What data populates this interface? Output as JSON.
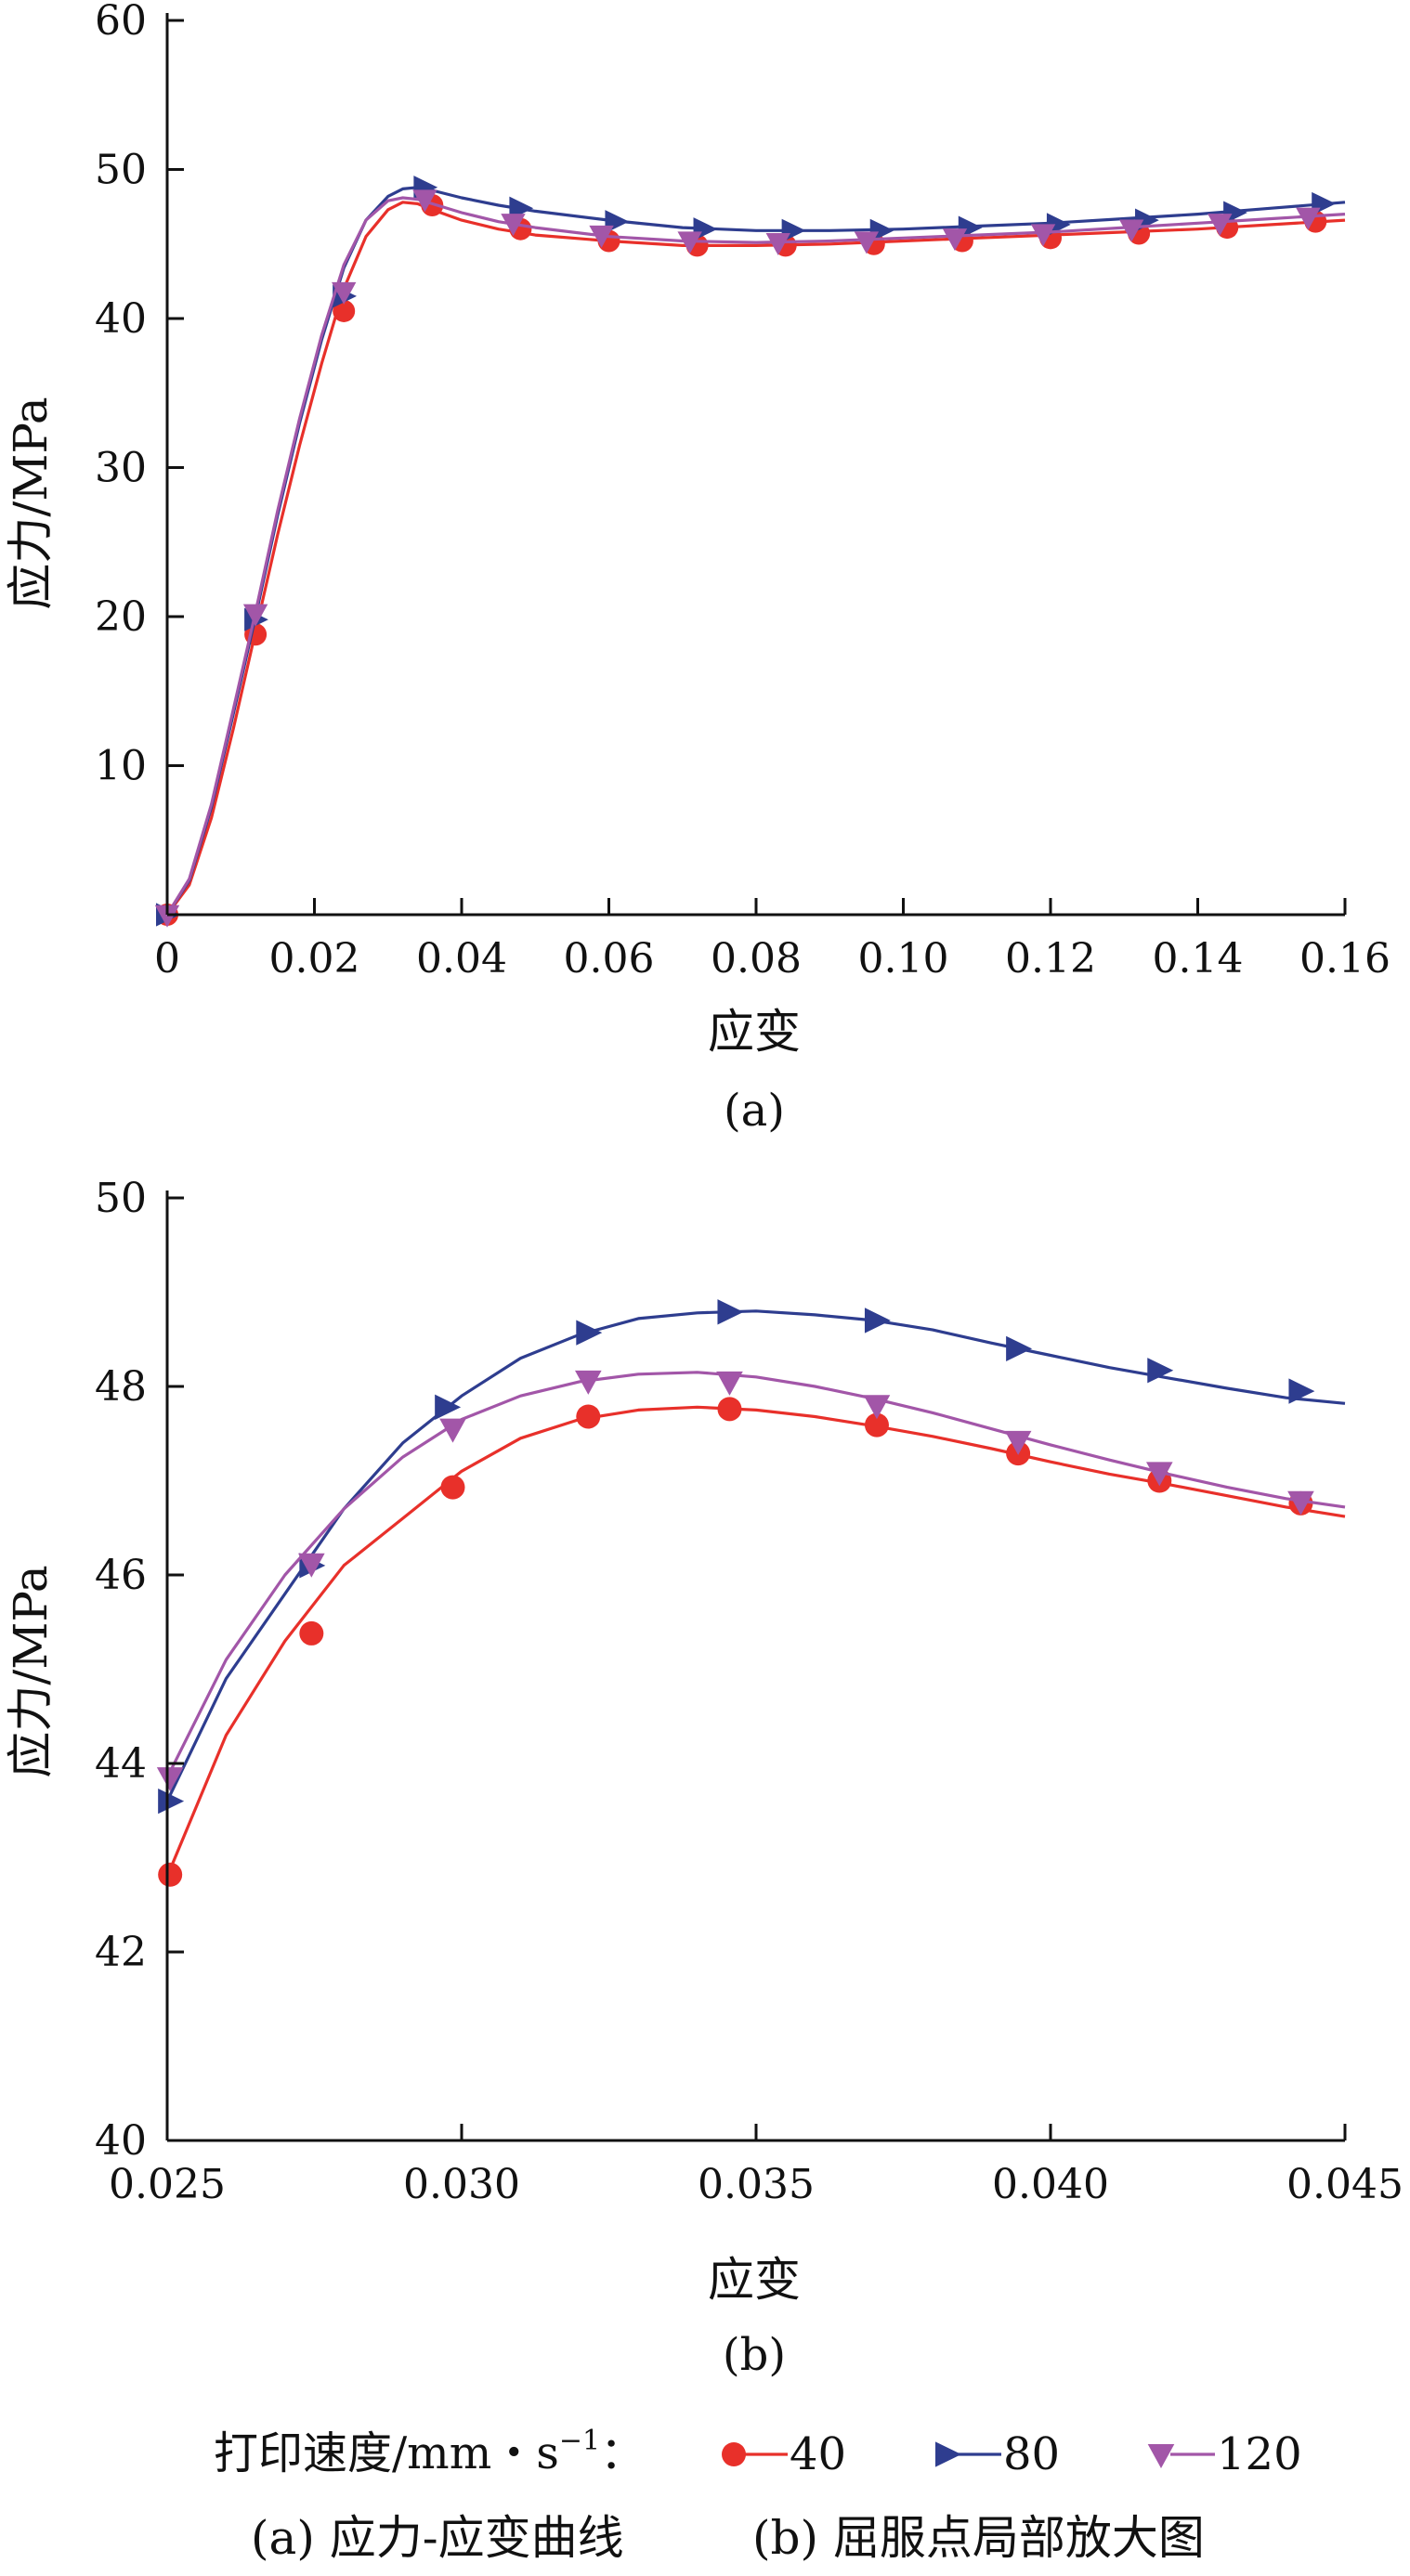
{
  "chart_data": [
    {
      "panel": "(a)",
      "type": "line",
      "xlabel": "应变",
      "ylabel": "应力/MPa",
      "xlim": [
        0,
        0.16
      ],
      "ylim": [
        0,
        60
      ],
      "xticks": [
        "0",
        "0.02",
        "0.04",
        "0.06",
        "0.08",
        "0.10",
        "0.12",
        "0.14",
        "0.16"
      ],
      "yticks": [
        "10",
        "20",
        "30",
        "40",
        "50",
        "60"
      ],
      "grid": false,
      "series": [
        {
          "name": "40",
          "color": "#e8302a",
          "marker": "circle",
          "x": [
            0.0,
            0.003,
            0.006,
            0.009,
            0.012,
            0.015,
            0.018,
            0.021,
            0.024,
            0.027,
            0.03,
            0.032,
            0.034,
            0.036,
            0.04,
            0.045,
            0.05,
            0.06,
            0.07,
            0.08,
            0.09,
            0.1,
            0.11,
            0.12,
            0.13,
            0.14,
            0.15,
            0.16
          ],
          "y": [
            0.0,
            2.0,
            6.5,
            12.5,
            19.0,
            25.5,
            31.5,
            37.0,
            42.0,
            45.5,
            47.3,
            47.8,
            47.7,
            47.3,
            46.6,
            46.0,
            45.6,
            45.2,
            44.9,
            44.9,
            45.0,
            45.2,
            45.4,
            45.6,
            45.8,
            46.0,
            46.3,
            46.6
          ],
          "markers": [
            [
              0.0,
              0.0
            ],
            [
              0.012,
              18.8
            ],
            [
              0.024,
              40.5
            ],
            [
              0.036,
              47.6
            ],
            [
              0.048,
              46.0
            ],
            [
              0.06,
              45.2
            ],
            [
              0.072,
              44.9
            ],
            [
              0.084,
              44.9
            ],
            [
              0.096,
              45.0
            ],
            [
              0.108,
              45.2
            ],
            [
              0.12,
              45.4
            ],
            [
              0.132,
              45.7
            ],
            [
              0.144,
              46.1
            ],
            [
              0.156,
              46.5
            ]
          ]
        },
        {
          "name": "80",
          "color": "#2e3d8f",
          "marker": "triangle-right",
          "x": [
            0.0,
            0.003,
            0.006,
            0.009,
            0.012,
            0.015,
            0.018,
            0.021,
            0.024,
            0.027,
            0.03,
            0.032,
            0.034,
            0.036,
            0.04,
            0.045,
            0.05,
            0.06,
            0.07,
            0.08,
            0.09,
            0.1,
            0.11,
            0.12,
            0.13,
            0.14,
            0.15,
            0.16
          ],
          "y": [
            0.0,
            2.3,
            7.2,
            13.5,
            20.0,
            26.8,
            33.0,
            38.6,
            43.4,
            46.6,
            48.2,
            48.7,
            48.8,
            48.6,
            48.1,
            47.6,
            47.2,
            46.6,
            46.1,
            45.9,
            45.9,
            46.0,
            46.2,
            46.4,
            46.7,
            47.0,
            47.4,
            47.8
          ],
          "markers": [
            [
              0.0,
              0.0
            ],
            [
              0.012,
              19.8
            ],
            [
              0.024,
              41.5
            ],
            [
              0.035,
              48.8
            ],
            [
              0.048,
              47.4
            ],
            [
              0.061,
              46.5
            ],
            [
              0.073,
              46.0
            ],
            [
              0.085,
              45.9
            ],
            [
              0.097,
              45.9
            ],
            [
              0.109,
              46.1
            ],
            [
              0.121,
              46.3
            ],
            [
              0.133,
              46.6
            ],
            [
              0.145,
              47.1
            ],
            [
              0.157,
              47.7
            ]
          ]
        },
        {
          "name": "120",
          "color": "#a256a8",
          "marker": "triangle-down",
          "x": [
            0.0,
            0.003,
            0.006,
            0.009,
            0.012,
            0.015,
            0.018,
            0.021,
            0.024,
            0.027,
            0.03,
            0.032,
            0.034,
            0.036,
            0.04,
            0.045,
            0.05,
            0.06,
            0.07,
            0.08,
            0.09,
            0.1,
            0.11,
            0.12,
            0.13,
            0.14,
            0.15,
            0.16
          ],
          "y": [
            0.0,
            2.4,
            7.4,
            13.8,
            20.3,
            27.1,
            33.3,
            38.9,
            43.6,
            46.6,
            47.9,
            48.1,
            48.0,
            47.7,
            47.1,
            46.5,
            46.1,
            45.5,
            45.2,
            45.1,
            45.2,
            45.4,
            45.6,
            45.8,
            46.1,
            46.4,
            46.7,
            47.0
          ],
          "markers": [
            [
              0.0,
              0.0
            ],
            [
              0.012,
              20.2
            ],
            [
              0.024,
              41.8
            ],
            [
              0.035,
              48.0
            ],
            [
              0.047,
              46.4
            ],
            [
              0.059,
              45.6
            ],
            [
              0.071,
              45.2
            ],
            [
              0.083,
              45.1
            ],
            [
              0.095,
              45.2
            ],
            [
              0.107,
              45.4
            ],
            [
              0.119,
              45.7
            ],
            [
              0.131,
              46.0
            ],
            [
              0.143,
              46.4
            ],
            [
              0.155,
              46.8
            ]
          ]
        }
      ]
    },
    {
      "panel": "(b)",
      "type": "line",
      "xlabel": "应变",
      "ylabel": "应力/MPa",
      "xlim": [
        0.025,
        0.045
      ],
      "ylim": [
        40,
        50
      ],
      "xticks": [
        "0.025",
        "0.030",
        "0.035",
        "0.040",
        "0.045"
      ],
      "yticks": [
        "40",
        "42",
        "44",
        "46",
        "48",
        "50"
      ],
      "grid": false,
      "series": [
        {
          "name": "40",
          "color": "#e8302a",
          "marker": "circle",
          "x": [
            0.025,
            0.026,
            0.027,
            0.028,
            0.029,
            0.03,
            0.031,
            0.032,
            0.033,
            0.034,
            0.035,
            0.036,
            0.037,
            0.038,
            0.039,
            0.04,
            0.041,
            0.042,
            0.043,
            0.044,
            0.045
          ],
          "y": [
            42.8,
            44.3,
            45.3,
            46.1,
            46.6,
            47.1,
            47.45,
            47.65,
            47.75,
            47.78,
            47.75,
            47.68,
            47.58,
            47.47,
            47.34,
            47.2,
            47.07,
            46.96,
            46.84,
            46.72,
            46.62
          ],
          "markers": [
            [
              0.02505,
              42.82
            ],
            [
              0.02745,
              45.38
            ],
            [
              0.02985,
              46.93
            ],
            [
              0.03215,
              47.68
            ],
            [
              0.03455,
              47.76
            ],
            [
              0.03705,
              47.59
            ],
            [
              0.03945,
              47.29
            ],
            [
              0.04185,
              47.0
            ],
            [
              0.04425,
              46.76
            ]
          ]
        },
        {
          "name": "80",
          "color": "#2e3d8f",
          "marker": "triangle-right",
          "x": [
            0.025,
            0.026,
            0.027,
            0.028,
            0.029,
            0.03,
            0.031,
            0.032,
            0.033,
            0.034,
            0.035,
            0.036,
            0.037,
            0.038,
            0.039,
            0.04,
            0.041,
            0.042,
            0.043,
            0.044,
            0.045
          ],
          "y": [
            43.6,
            44.9,
            45.8,
            46.7,
            47.4,
            47.9,
            48.3,
            48.55,
            48.72,
            48.78,
            48.8,
            48.76,
            48.7,
            48.6,
            48.46,
            48.33,
            48.2,
            48.09,
            47.98,
            47.88,
            47.82
          ],
          "markers": [
            [
              0.02505,
              43.6
            ],
            [
              0.02745,
              46.1
            ],
            [
              0.02975,
              47.78
            ],
            [
              0.03215,
              48.57
            ],
            [
              0.03455,
              48.79
            ],
            [
              0.03705,
              48.7
            ],
            [
              0.03945,
              48.4
            ],
            [
              0.04185,
              48.17
            ],
            [
              0.04425,
              47.95
            ]
          ]
        },
        {
          "name": "120",
          "color": "#a256a8",
          "marker": "triangle-down",
          "x": [
            0.025,
            0.026,
            0.027,
            0.028,
            0.029,
            0.03,
            0.031,
            0.032,
            0.033,
            0.034,
            0.035,
            0.036,
            0.037,
            0.038,
            0.039,
            0.04,
            0.041,
            0.042,
            0.043,
            0.044,
            0.045
          ],
          "y": [
            43.85,
            45.1,
            46.0,
            46.7,
            47.25,
            47.65,
            47.9,
            48.05,
            48.13,
            48.15,
            48.1,
            48.0,
            47.87,
            47.72,
            47.55,
            47.38,
            47.22,
            47.07,
            46.93,
            46.81,
            46.72
          ],
          "markers": [
            [
              0.02505,
              43.85
            ],
            [
              0.02745,
              46.12
            ],
            [
              0.02985,
              47.55
            ],
            [
              0.03215,
              48.06
            ],
            [
              0.03455,
              48.05
            ],
            [
              0.03705,
              47.8
            ],
            [
              0.03945,
              47.42
            ],
            [
              0.04185,
              47.09
            ],
            [
              0.04425,
              46.78
            ]
          ]
        }
      ]
    }
  ],
  "legend": {
    "prefix": "打印速度/mm・s",
    "superscript": "−1",
    "colon": "：",
    "items": [
      {
        "label": "40",
        "color": "#e8302a",
        "marker": "circle"
      },
      {
        "label": "80",
        "color": "#2e3d8f",
        "marker": "triangle-right"
      },
      {
        "label": "120",
        "color": "#a256a8",
        "marker": "triangle-down"
      }
    ]
  },
  "caption": {
    "a": "(a) 应力-应变曲线",
    "b": "(b) 屈服点局部放大图"
  }
}
